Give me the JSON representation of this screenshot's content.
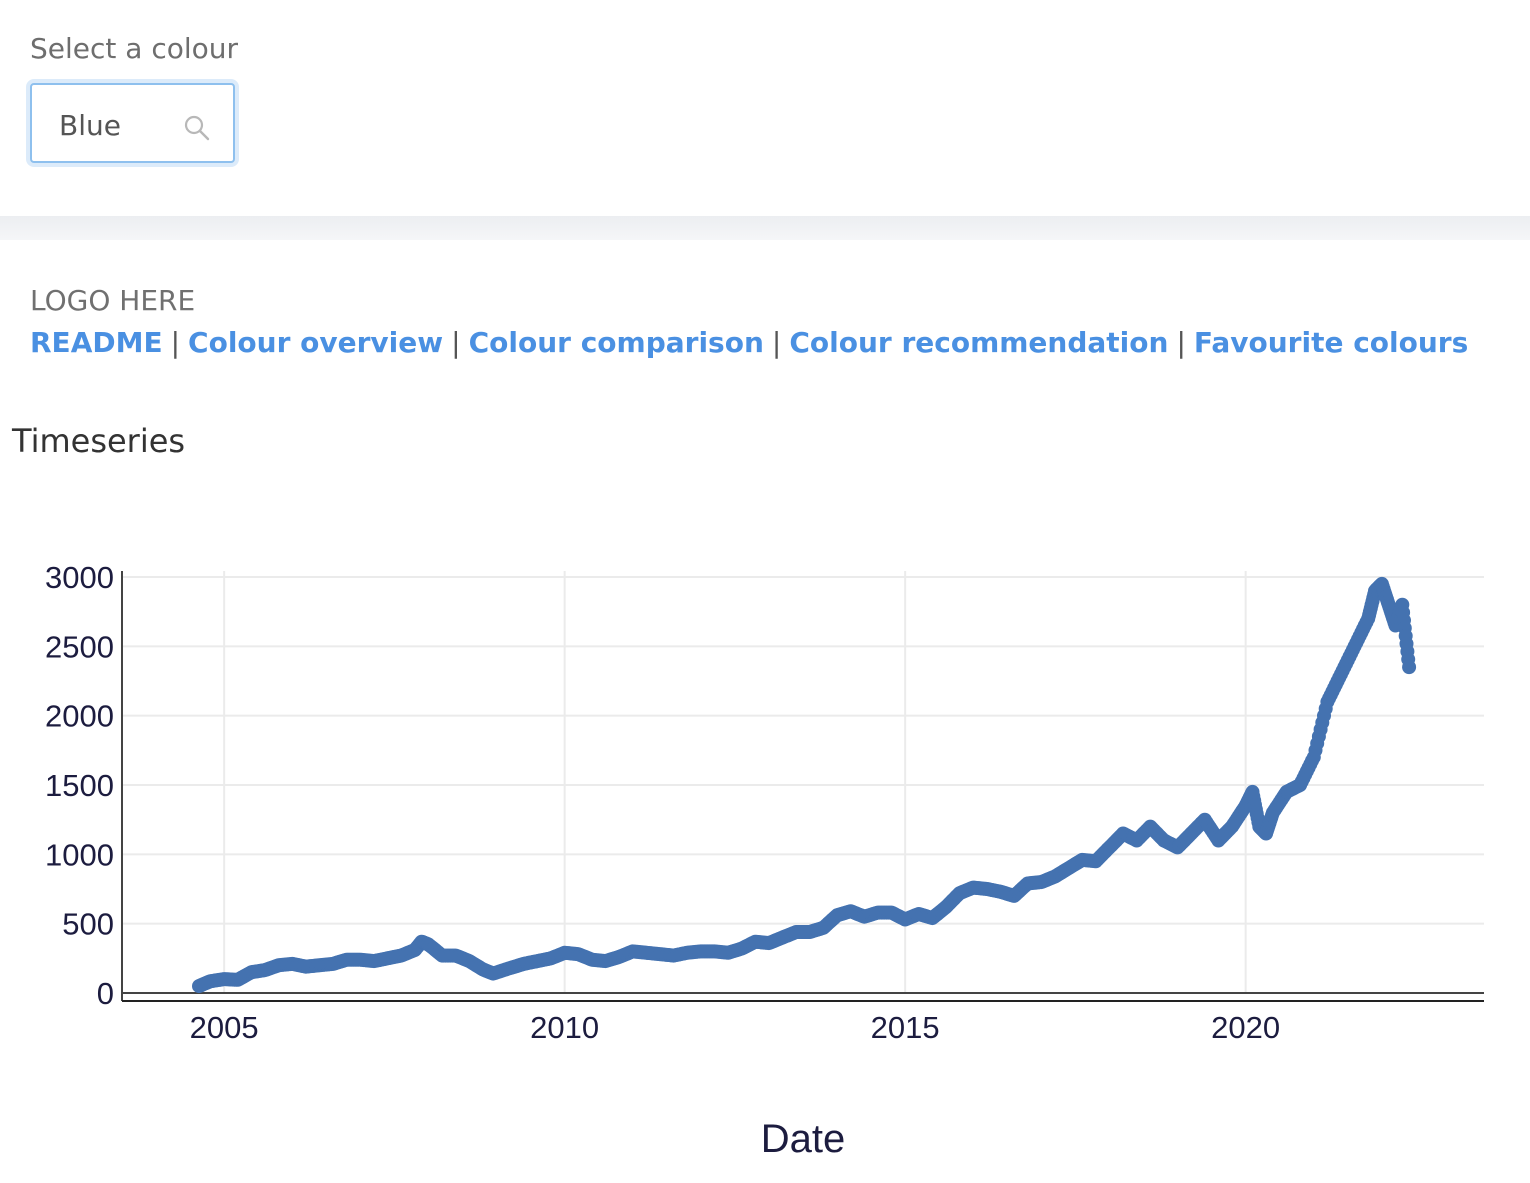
{
  "selector": {
    "label": "Select a colour",
    "value": "Blue",
    "icon": "search-icon"
  },
  "header": {
    "logo_text": "LOGO HERE"
  },
  "nav": {
    "links": [
      "README",
      "Colour overview",
      "Colour comparison",
      "Colour recommendation",
      "Favourite colours"
    ],
    "separator": "|",
    "link_color": "#4a90e2"
  },
  "section": {
    "title": "Timeseries"
  },
  "chart_data": {
    "type": "scatter",
    "title": "",
    "xlabel": "Date",
    "ylabel": "",
    "x_ticks": [
      "2005",
      "2010",
      "2015",
      "2020"
    ],
    "y_ticks": [
      "0",
      "500",
      "1000",
      "1500",
      "2000",
      "2500",
      "3000"
    ],
    "xlim": [
      2003.5,
      2023.5
    ],
    "ylim": [
      0,
      3000
    ],
    "grid": true,
    "marker_color": "#4472b0",
    "series": [
      {
        "x": [
          2004.63,
          2004.8,
          2005.0,
          2005.2,
          2005.4,
          2005.6,
          2005.8,
          2006.0,
          2006.2,
          2006.4,
          2006.6,
          2006.8,
          2007.0,
          2007.2,
          2007.4,
          2007.6,
          2007.8,
          2007.9,
          2008.0,
          2008.2,
          2008.4,
          2008.6,
          2008.8,
          2008.95,
          2009.2,
          2009.4,
          2009.6,
          2009.8,
          2010.0,
          2010.2,
          2010.4,
          2010.6,
          2010.8,
          2011.0,
          2011.2,
          2011.4,
          2011.6,
          2011.8,
          2012.0,
          2012.2,
          2012.4,
          2012.6,
          2012.8,
          2013.0,
          2013.2,
          2013.4,
          2013.6,
          2013.8,
          2014.0,
          2014.2,
          2014.4,
          2014.6,
          2014.8,
          2015.0,
          2015.2,
          2015.4,
          2015.6,
          2015.8,
          2016.0,
          2016.2,
          2016.4,
          2016.6,
          2016.8,
          2017.0,
          2017.2,
          2017.4,
          2017.6,
          2017.8,
          2018.0,
          2018.2,
          2018.4,
          2018.6,
          2018.8,
          2019.0,
          2019.2,
          2019.4,
          2019.6,
          2019.8,
          2020.0,
          2020.1,
          2020.2,
          2020.3,
          2020.4,
          2020.6,
          2020.8,
          2021.0,
          2021.2,
          2021.4,
          2021.6,
          2021.8,
          2021.9,
          2022.0,
          2022.1,
          2022.2,
          2022.3,
          2022.4
        ],
        "y": [
          50,
          85,
          100,
          95,
          150,
          165,
          200,
          210,
          190,
          200,
          210,
          240,
          240,
          230,
          250,
          270,
          310,
          370,
          350,
          270,
          270,
          230,
          170,
          140,
          180,
          210,
          230,
          250,
          290,
          280,
          240,
          230,
          260,
          300,
          290,
          280,
          270,
          290,
          300,
          300,
          290,
          320,
          370,
          360,
          400,
          440,
          440,
          470,
          560,
          590,
          550,
          580,
          580,
          530,
          570,
          540,
          620,
          720,
          760,
          750,
          730,
          700,
          790,
          800,
          840,
          900,
          960,
          950,
          1050,
          1150,
          1100,
          1200,
          1100,
          1050,
          1150,
          1250,
          1100,
          1200,
          1350,
          1450,
          1200,
          1150,
          1300,
          1450,
          1500,
          1700,
          2100,
          2300,
          2500,
          2700,
          2900,
          2950,
          2800,
          2650,
          2800,
          2350
        ]
      }
    ]
  }
}
